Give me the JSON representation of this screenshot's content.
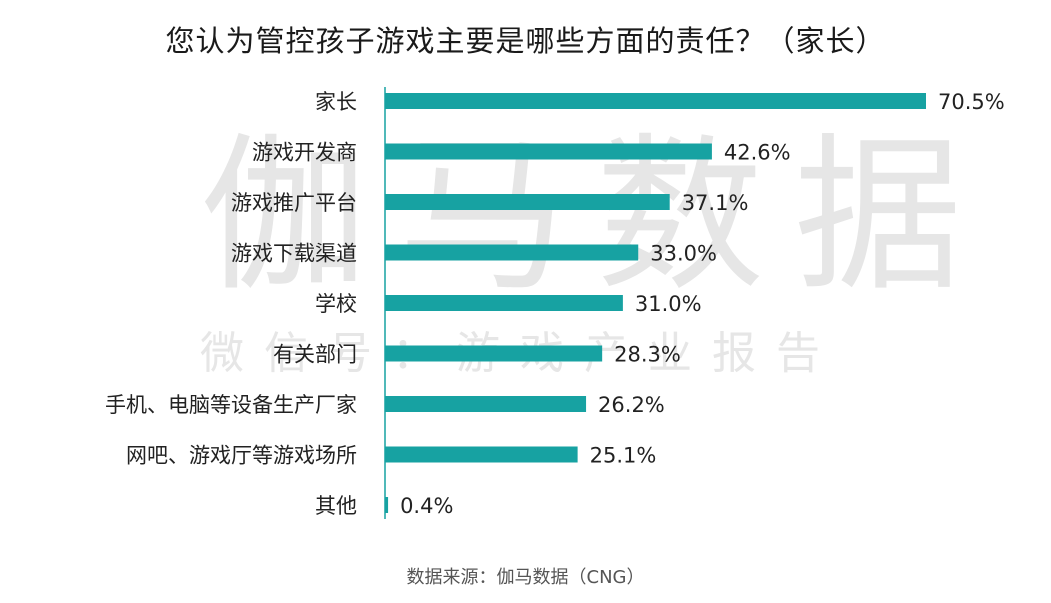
{
  "watermark": {
    "main": "伽马数据",
    "sub": "微信号：游戏产业报告"
  },
  "source": "数据来源：伽马数据（CNG）",
  "colors": {
    "bar": "#17a2a2",
    "axis": "#17a2a2",
    "label": "#222222"
  },
  "chart_data": {
    "type": "bar",
    "orientation": "horizontal",
    "title": "您认为管控孩子游戏主要是哪些方面的责任？（家长）",
    "categories": [
      "家长",
      "游戏开发商",
      "游戏推广平台",
      "游戏下载渠道",
      "学校",
      "有关部门",
      "手机、电脑等设备生产厂家",
      "网吧、游戏厅等游戏场所",
      "其他"
    ],
    "values": [
      70.5,
      42.6,
      37.1,
      33.0,
      31.0,
      28.3,
      26.2,
      25.1,
      0.4
    ],
    "value_labels": [
      "70.5%",
      "42.6%",
      "37.1%",
      "33.0%",
      "31.0%",
      "28.3%",
      "26.2%",
      "25.1%",
      "0.4%"
    ],
    "xlim": [
      0,
      70.5
    ],
    "grid": false,
    "legend": "none"
  }
}
